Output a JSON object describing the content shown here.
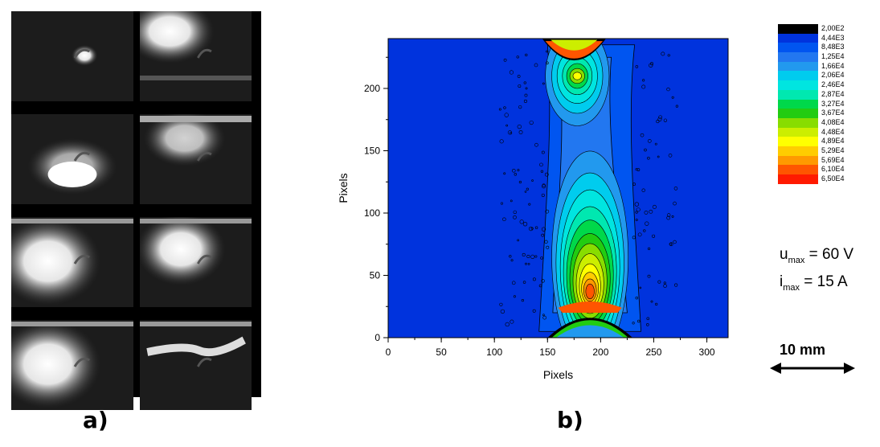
{
  "panel_a": {
    "label": "a)",
    "frames": [
      {
        "id": "f1",
        "glow": "small"
      },
      {
        "id": "f2",
        "glow": "top-left-large"
      },
      {
        "id": "f3",
        "glow": "bottom"
      },
      {
        "id": "f4",
        "glow": "top"
      },
      {
        "id": "f5",
        "glow": "large"
      },
      {
        "id": "f6",
        "glow": "large-right"
      },
      {
        "id": "f7",
        "glow": "large"
      },
      {
        "id": "f8",
        "glow": "streak"
      }
    ]
  },
  "panel_b": {
    "label": "b)"
  },
  "chart_data": {
    "type": "heatmap",
    "title": "",
    "xlabel": "Pixels",
    "ylabel": "Pixels",
    "xlim": [
      0,
      320
    ],
    "ylim": [
      0,
      240
    ],
    "x_ticks": [
      0,
      50,
      100,
      150,
      200,
      250,
      300
    ],
    "y_ticks": [
      0,
      50,
      100,
      150,
      200
    ],
    "grid": false,
    "features": [
      {
        "name": "upper electrode",
        "x_center": 175,
        "x_halfwidth": 30,
        "y_bottom": 210,
        "y_top": 240
      },
      {
        "name": "lower electrode",
        "x_center": 190,
        "x_halfwidth": 40,
        "y_bottom": 0,
        "y_top": 25
      },
      {
        "name": "lower hot spot",
        "x": 190,
        "y": 35
      },
      {
        "name": "upper hot spot",
        "x": 178,
        "y": 210
      }
    ],
    "levels": [
      "2,00E2",
      "4,44E3",
      "8,48E3",
      "1,25E4",
      "1,66E4",
      "2,06E4",
      "2,46E4",
      "2,87E4",
      "3,27E4",
      "3,67E4",
      "4,08E4",
      "4,48E4",
      "4,89E4",
      "5,29E4",
      "5,69E4",
      "6,10E4",
      "6,50E4"
    ],
    "level_colors": [
      "#000000",
      "#0033dd",
      "#0055f0",
      "#2277f0",
      "#2299ee",
      "#00ccee",
      "#00e5e0",
      "#00e8b0",
      "#00d84a",
      "#22cc11",
      "#88dd00",
      "#ccee00",
      "#ffff00",
      "#ffcc00",
      "#ff9900",
      "#ff5500",
      "#ff1a00"
    ],
    "background_color": "#0033dd"
  },
  "params": [
    {
      "var": "u",
      "sub": "max",
      "value": "= 60 V"
    },
    {
      "var": "i",
      "sub": "max",
      "value": "= 15 A"
    }
  ],
  "scale_bar": {
    "label": "10 mm"
  }
}
